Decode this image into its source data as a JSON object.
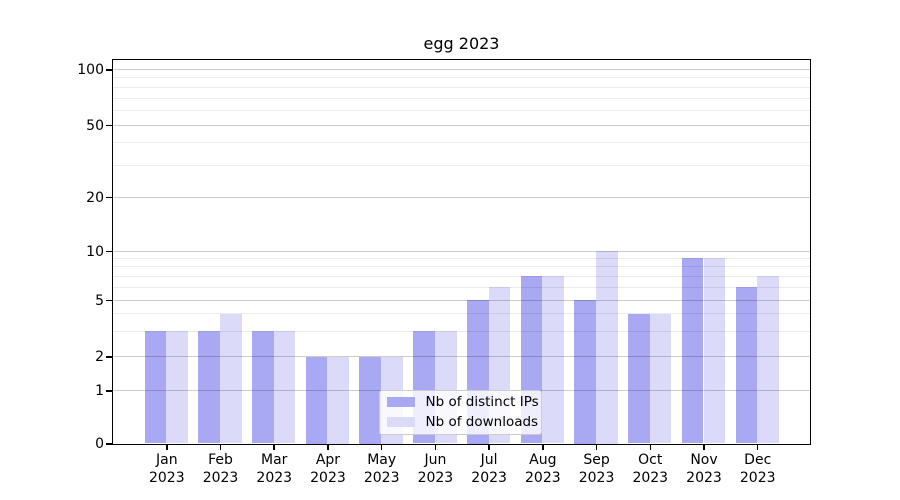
{
  "chart_data": {
    "type": "bar",
    "title": "egg 2023",
    "categories": [
      "Jan",
      "Feb",
      "Mar",
      "Apr",
      "May",
      "Jun",
      "Jul",
      "Aug",
      "Sep",
      "Oct",
      "Nov",
      "Dec"
    ],
    "category_year": "2023",
    "series": [
      {
        "name": "Nb of distinct IPs",
        "color": "#a9a9f3",
        "values": [
          3,
          3,
          3,
          2,
          2,
          3,
          5,
          7,
          5,
          4,
          9,
          6
        ]
      },
      {
        "name": "Nb of downloads",
        "color": "#dbdbf9",
        "values": [
          3,
          4,
          3,
          2,
          2,
          3,
          6,
          7,
          10,
          4,
          9,
          7
        ]
      }
    ],
    "yaxis": {
      "scale": "symlog",
      "major_ticks": [
        0,
        1,
        2,
        5,
        10,
        20,
        50,
        100
      ],
      "minor_ticks": [
        3,
        4,
        6,
        7,
        8,
        9,
        30,
        40,
        60,
        70,
        80,
        90
      ],
      "range": [
        0,
        120
      ]
    },
    "grid": true,
    "legend_position": "lower center",
    "colors": {
      "grid_major": "#cccccc",
      "grid_minor": "#ebebeb",
      "spine": "#000000",
      "background": "#ffffff"
    }
  }
}
